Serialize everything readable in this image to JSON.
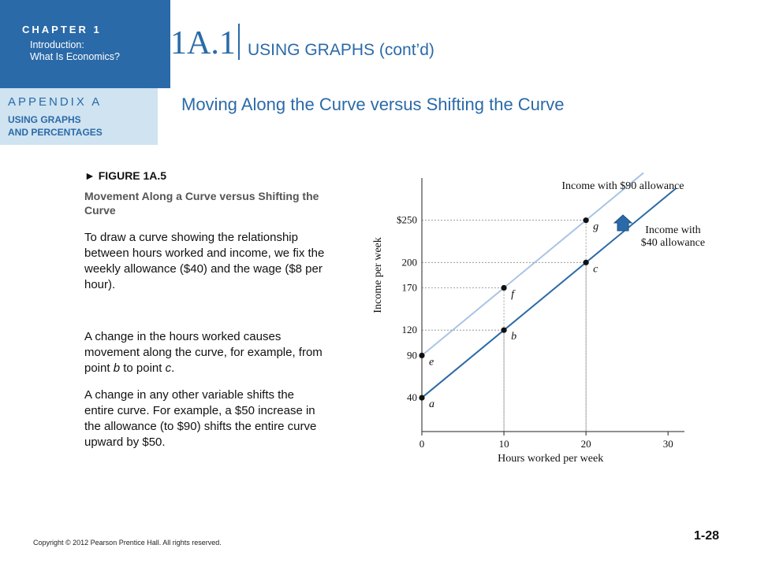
{
  "header": {
    "chapter_title": "CHAPTER 1",
    "chapter_subtitle_line1": "Introduction:",
    "chapter_subtitle_line2": "What Is Economics?",
    "appendix_title": "APPENDIX A",
    "appendix_sub_line1": "USING GRAPHS",
    "appendix_sub_line2": "AND PERCENTAGES",
    "section_number": "1A.1",
    "slide_title": "USING GRAPHS (cont’d)",
    "slide_subtitle": "Moving Along the Curve versus Shifting the Curve"
  },
  "figure": {
    "label": "► FIGURE 1A.5",
    "caption": "Movement Along a Curve versus Shifting the Curve"
  },
  "body": {
    "paragraph1": "To draw a curve showing the relationship between hours worked and income, we fix the weekly allowance ($40) and the wage ($8 per hour).",
    "paragraph2_pre": "A change in the hours worked causes movement along the curve, for example, from point ",
    "paragraph2_b": "b",
    "paragraph2_mid": " to point ",
    "paragraph2_c": "c",
    "paragraph2_post": ".",
    "paragraph3": "A change in any other variable shifts the entire curve. For example, a $50 increase in the allowance (to $90) shifts the entire curve upward by $50."
  },
  "footer": {
    "copyright": "Copyright © 2012 Pearson Prentice Hall. All rights reserved.",
    "page_number": "1-28"
  },
  "colors": {
    "brand_blue": "#2b6aa8",
    "light_line": "#a9c4e4",
    "appendix_bg": "#cfe3f1"
  },
  "icons": {
    "nav": "home-up-arrow-icon"
  },
  "chart_data": {
    "type": "line",
    "xlabel": "Hours worked per week",
    "ylabel": "Income per week",
    "xlim": [
      0,
      32
    ],
    "ylim": [
      0,
      300
    ],
    "x_ticks": [
      0,
      10,
      20,
      30
    ],
    "y_tick_labels": [
      {
        "value": 40,
        "label": "40"
      },
      {
        "value": 90,
        "label": "90"
      },
      {
        "value": 120,
        "label": "120"
      },
      {
        "value": 170,
        "label": "170"
      },
      {
        "value": 200,
        "label": "200"
      },
      {
        "value": 250,
        "label": "$250"
      }
    ],
    "series": [
      {
        "name": "Income with $90 allowance",
        "x": [
          0,
          27
        ],
        "y": [
          90,
          306
        ],
        "color": "#a9c4e4",
        "label_lines": [
          "Income with $90 allowance"
        ]
      },
      {
        "name": "Income with $40 allowance",
        "x": [
          0,
          31
        ],
        "y": [
          40,
          288
        ],
        "color": "#2b6aa8",
        "label_lines": [
          "Income with",
          "$40 allowance"
        ]
      }
    ],
    "points": [
      {
        "label": "a",
        "x": 0,
        "y": 40
      },
      {
        "label": "e",
        "x": 0,
        "y": 90
      },
      {
        "label": "b",
        "x": 10,
        "y": 120
      },
      {
        "label": "f",
        "x": 10,
        "y": 170
      },
      {
        "label": "c",
        "x": 20,
        "y": 200
      },
      {
        "label": "g",
        "x": 20,
        "y": 250
      }
    ],
    "guide_lines": true
  }
}
